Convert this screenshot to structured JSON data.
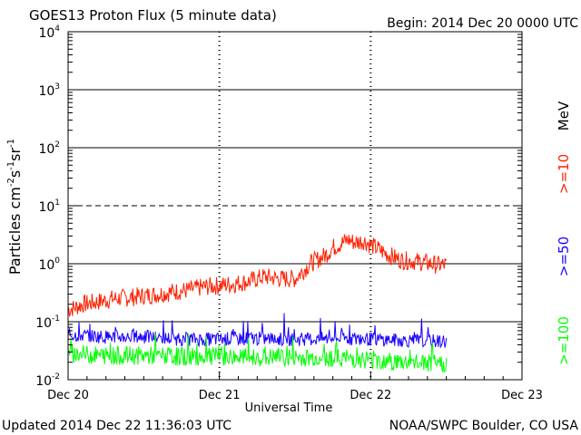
{
  "chart_data": {
    "type": "line",
    "title": "GOES13 Proton Flux (5 minute data)",
    "begin_label": "Begin: 2014 Dec 20 0000 UTC",
    "xlabel": "Universal Time",
    "ylabel_main": "Particles cm",
    "ylabel_exp1": "-2",
    "ylabel_s": "s",
    "ylabel_exp2": "-1",
    "ylabel_sr": "sr",
    "ylabel_exp3": "-1",
    "yscale": "log",
    "ylim": [
      0.01,
      10000
    ],
    "xlim_days": [
      0,
      3
    ],
    "x_ticks": [
      "Dec 20",
      "Dec 21",
      "Dec 22",
      "Dec 23"
    ],
    "y_ticks": [
      {
        "base": "10",
        "exp": "-2"
      },
      {
        "base": "10",
        "exp": "-1"
      },
      {
        "base": "10",
        "exp": "0"
      },
      {
        "base": "10",
        "exp": "1"
      },
      {
        "base": "10",
        "exp": "2"
      },
      {
        "base": "10",
        "exp": "3"
      },
      {
        "base": "10",
        "exp": "4"
      }
    ],
    "threshold_lines": [
      {
        "value": 0.1,
        "style": "solid"
      },
      {
        "value": 1,
        "style": "solid"
      },
      {
        "value": 10,
        "style": "dashed"
      },
      {
        "value": 100,
        "style": "solid"
      },
      {
        "value": 1000,
        "style": "solid"
      }
    ],
    "unit_label": "MeV",
    "series": [
      {
        "name": ">=10",
        "color": "#ff2000",
        "x_days": [
          0,
          0.1,
          0.2,
          0.3,
          0.4,
          0.5,
          0.6,
          0.7,
          0.8,
          0.9,
          1.0,
          1.1,
          1.2,
          1.3,
          1.4,
          1.5,
          1.6,
          1.7,
          1.75,
          1.8,
          1.85,
          1.9,
          1.95,
          2.0,
          2.05,
          2.1,
          2.15,
          2.2,
          2.3,
          2.4,
          2.45,
          2.5
        ],
        "values": [
          0.16,
          0.2,
          0.22,
          0.25,
          0.26,
          0.28,
          0.3,
          0.33,
          0.35,
          0.4,
          0.42,
          0.45,
          0.5,
          0.6,
          0.55,
          0.55,
          1.0,
          1.4,
          1.9,
          2.2,
          2.6,
          2.3,
          2.5,
          2.1,
          1.8,
          1.5,
          1.3,
          1.15,
          1.1,
          1.0,
          0.95,
          0.95
        ]
      },
      {
        "name": ">=50",
        "color": "#1a00ff",
        "x_days": [
          0,
          0.25,
          0.5,
          0.75,
          1.0,
          1.2,
          1.4,
          1.6,
          1.8,
          2.0,
          2.2,
          2.4,
          2.5
        ],
        "values": [
          0.06,
          0.055,
          0.055,
          0.05,
          0.05,
          0.052,
          0.05,
          0.05,
          0.052,
          0.05,
          0.048,
          0.046,
          0.046
        ]
      },
      {
        "name": ">=100",
        "color": "#00ff00",
        "x_days": [
          0,
          0.25,
          0.5,
          0.75,
          1.0,
          1.2,
          1.4,
          1.6,
          1.8,
          2.0,
          2.2,
          2.4,
          2.5
        ],
        "values": [
          0.028,
          0.026,
          0.026,
          0.025,
          0.025,
          0.024,
          0.024,
          0.024,
          0.024,
          0.022,
          0.02,
          0.019,
          0.019
        ]
      }
    ]
  },
  "footer": {
    "updated": "Updated 2014 Dec 22 11:36:03 UTC",
    "credit": "NOAA/SWPC Boulder, CO USA"
  }
}
